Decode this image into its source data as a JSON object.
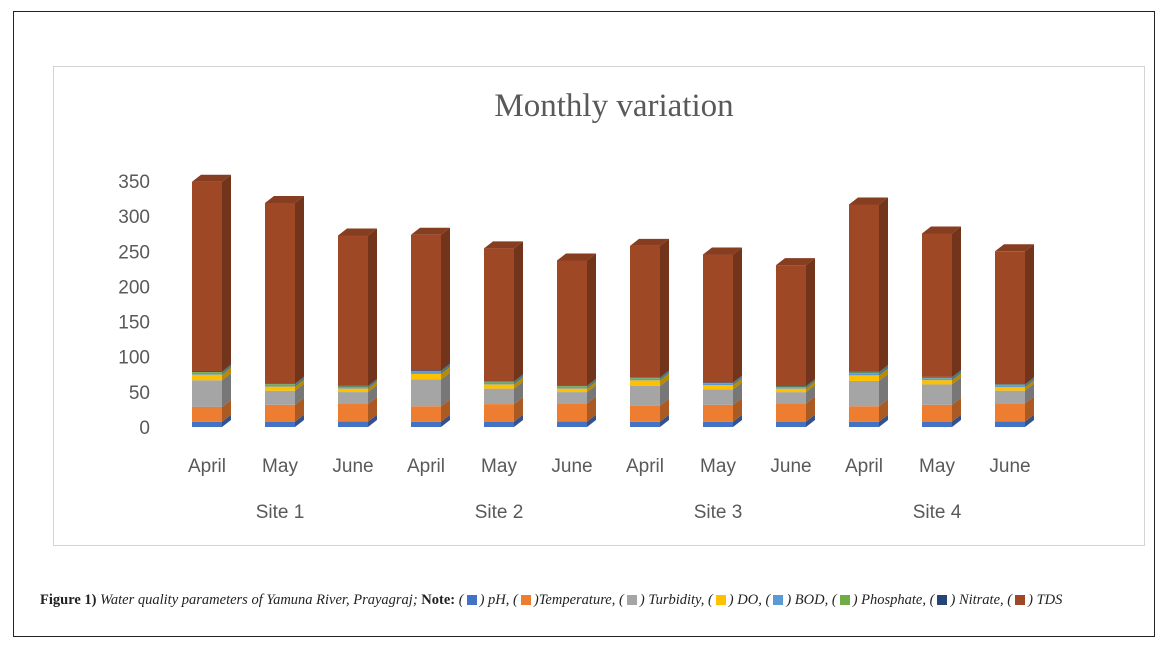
{
  "chart_data": {
    "type": "bar",
    "stacked": true,
    "three_d": true,
    "title": "Monthly variation",
    "xlabel": "",
    "ylabel": "",
    "ylim": [
      0,
      350
    ],
    "yticks": [
      "0",
      "50",
      "100",
      "150",
      "200",
      "250",
      "300",
      "350"
    ],
    "grid": false,
    "categories": [
      "April",
      "May",
      "June",
      "April",
      "May",
      "June",
      "April",
      "May",
      "June",
      "April",
      "May",
      "June"
    ],
    "groups": [
      {
        "label": "Site 1",
        "span": 3
      },
      {
        "label": "Site 2",
        "span": 3
      },
      {
        "label": "Site 3",
        "span": 3
      },
      {
        "label": "Site 4",
        "span": 3
      }
    ],
    "series": [
      {
        "name": "pH",
        "color": "#4472c4",
        "values": [
          7.5,
          7.6,
          7.7,
          7.5,
          7.6,
          7.7,
          7.4,
          7.5,
          7.6,
          7.5,
          7.6,
          7.7
        ]
      },
      {
        "name": "Temperature",
        "color": "#ed7d31",
        "values": [
          21,
          24,
          25,
          22,
          25,
          26,
          23,
          24,
          26,
          22,
          24,
          26
        ]
      },
      {
        "name": "Turbidity",
        "color": "#a5a5a5",
        "values": [
          38,
          20,
          17,
          38,
          22,
          16,
          28,
          22,
          16,
          36,
          29,
          18
        ]
      },
      {
        "name": "DO",
        "color": "#ffc000",
        "values": [
          8,
          6,
          5,
          8,
          6,
          5,
          8,
          6,
          5,
          8,
          6,
          5
        ]
      },
      {
        "name": "BOD",
        "color": "#5b9bd5",
        "values": [
          2.5,
          2.3,
          2.1,
          2.8,
          2.6,
          2.4,
          2.4,
          2.2,
          2,
          2.9,
          2.7,
          2.5
        ]
      },
      {
        "name": "Phosphate",
        "color": "#70ad47",
        "values": [
          1.2,
          1.1,
          1,
          1.3,
          1.2,
          1.1,
          1.1,
          1,
          1,
          1.3,
          1.2,
          1.1
        ]
      },
      {
        "name": "Nitrate",
        "color": "#264478",
        "values": [
          0.8,
          0.7,
          0.7,
          0.9,
          0.8,
          0.7,
          0.8,
          0.7,
          0.7,
          0.9,
          0.8,
          0.7
        ]
      },
      {
        "name": "TDS",
        "color": "#9e4826",
        "values": [
          270,
          257,
          214,
          193,
          189,
          178,
          187,
          182,
          172,
          238,
          204,
          189
        ]
      }
    ]
  },
  "caption": {
    "figure_label": "Figure 1)",
    "description": "Water quality parameters of Yamuna River, Prayagraj;",
    "note_label": "Note:",
    "legend": [
      {
        "name": "pH",
        "text": "pH,",
        "color": "#4472c4"
      },
      {
        "name": "Temperature",
        "text": ")Temperature,",
        "color": "#ed7d31"
      },
      {
        "name": "Turbidity",
        "text": "Turbidity,",
        "color": "#a5a5a5"
      },
      {
        "name": "DO",
        "text": "DO,",
        "color": "#ffc000"
      },
      {
        "name": "BOD",
        "text": "BOD,",
        "color": "#5b9bd5"
      },
      {
        "name": "Phosphate",
        "text": "Phosphate,",
        "color": "#70ad47"
      },
      {
        "name": "Nitrate",
        "text": "Nitrate,",
        "color": "#264478"
      },
      {
        "name": "TDS",
        "text": "TDS",
        "color": "#9e4826"
      }
    ]
  }
}
